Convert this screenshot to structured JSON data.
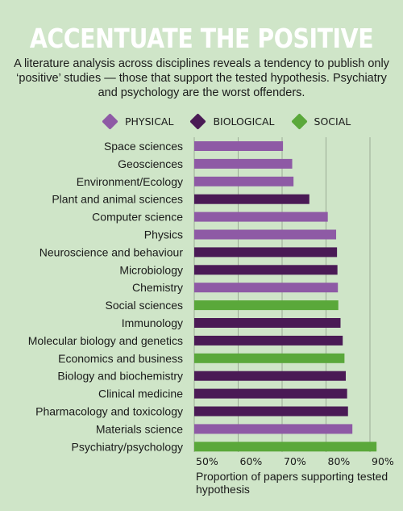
{
  "header": {
    "title": "ACCENTUATE THE POSITIVE",
    "subtitle": "A literature analysis across disciplines reveals a tendency to publish only ‘positive’ studies — those that support the tested hypothesis. Psychiatry and psychology are the worst offenders."
  },
  "legend": [
    {
      "label": "PHYSICAL",
      "color": "#8e5aa5"
    },
    {
      "label": "BIOLOGICAL",
      "color": "#4a1a55"
    },
    {
      "label": "SOCIAL",
      "color": "#5aa83a"
    }
  ],
  "chart_data": {
    "type": "bar",
    "orientation": "horizontal",
    "xlabel": "Proportion of papers supporting tested hypothesis",
    "xlim": [
      50,
      90
    ],
    "xticks": [
      "50%",
      "60%",
      "70%",
      "80%",
      "90%"
    ],
    "grid": true,
    "categories": [
      "Space sciences",
      "Geosciences",
      "Environment/Ecology",
      "Plant and animal sciences",
      "Computer science",
      "Physics",
      "Neuroscience and behaviour",
      "Microbiology",
      "Chemistry",
      "Social sciences",
      "Immunology",
      "Molecular biology and genetics",
      "Economics and business",
      "Biology and biochemistry",
      "Clinical medicine",
      "Pharmacology and toxicology",
      "Materials science",
      "Psychiatry/psychology"
    ],
    "values": [
      70.2,
      72.3,
      72.6,
      76.2,
      80.4,
      82.3,
      82.5,
      82.6,
      82.7,
      82.8,
      83.3,
      83.8,
      84.2,
      84.5,
      84.8,
      85.0,
      86.0,
      91.5
    ],
    "groups": [
      "PHYSICAL",
      "PHYSICAL",
      "PHYSICAL",
      "BIOLOGICAL",
      "PHYSICAL",
      "PHYSICAL",
      "BIOLOGICAL",
      "BIOLOGICAL",
      "PHYSICAL",
      "SOCIAL",
      "BIOLOGICAL",
      "BIOLOGICAL",
      "SOCIAL",
      "BIOLOGICAL",
      "BIOLOGICAL",
      "BIOLOGICAL",
      "PHYSICAL",
      "SOCIAL"
    ]
  }
}
